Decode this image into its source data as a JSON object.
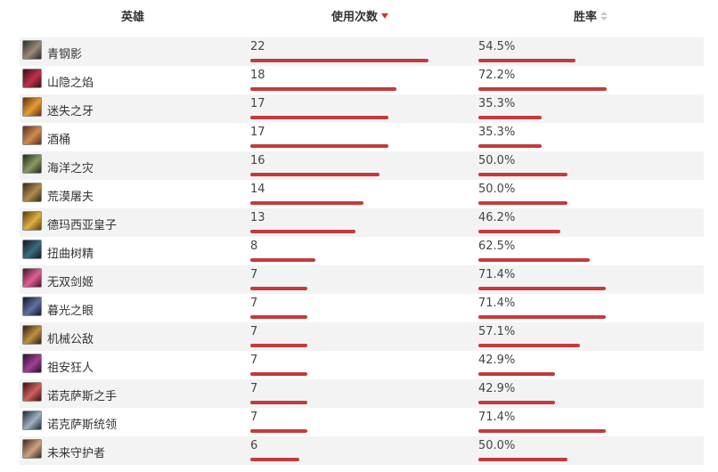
{
  "header": {
    "hero": "英雄",
    "uses": "使用次数",
    "winrate": "胜率"
  },
  "colors": {
    "bar": "#c53a3a",
    "sort_active": "#cf3535",
    "row_alt": "#f3f3f3"
  },
  "sort": {
    "column": "uses",
    "direction": "desc"
  },
  "rows": [
    {
      "hero": "青钢影",
      "uses": "22",
      "winrate": "54.5%",
      "uses_n": 22,
      "win_n": 54.5,
      "avatar_colors": [
        "#2b2b2b",
        "#9a8a7a"
      ]
    },
    {
      "hero": "山隐之焰",
      "uses": "18",
      "winrate": "72.2%",
      "uses_n": 18,
      "win_n": 72.2,
      "avatar_colors": [
        "#3a0f18",
        "#c0304a"
      ]
    },
    {
      "hero": "迷失之牙",
      "uses": "17",
      "winrate": "35.3%",
      "uses_n": 17,
      "win_n": 35.3,
      "avatar_colors": [
        "#6b2a10",
        "#e0a030"
      ]
    },
    {
      "hero": "酒桶",
      "uses": "17",
      "winrate": "35.3%",
      "uses_n": 17,
      "win_n": 35.3,
      "avatar_colors": [
        "#5a3020",
        "#d08a50"
      ]
    },
    {
      "hero": "海洋之灾",
      "uses": "16",
      "winrate": "50.0%",
      "uses_n": 16,
      "win_n": 50.0,
      "avatar_colors": [
        "#1f2a20",
        "#8a9a60"
      ]
    },
    {
      "hero": "荒漠屠夫",
      "uses": "14",
      "winrate": "50.0%",
      "uses_n": 14,
      "win_n": 50.0,
      "avatar_colors": [
        "#3a2a18",
        "#b08a50"
      ]
    },
    {
      "hero": "德玛西亚皇子",
      "uses": "13",
      "winrate": "46.2%",
      "uses_n": 13,
      "win_n": 46.2,
      "avatar_colors": [
        "#5a3a10",
        "#e0b040"
      ]
    },
    {
      "hero": "扭曲树精",
      "uses": "8",
      "winrate": "62.5%",
      "uses_n": 8,
      "win_n": 62.5,
      "avatar_colors": [
        "#0f1a25",
        "#3a6a80"
      ]
    },
    {
      "hero": "无双剑姬",
      "uses": "7",
      "winrate": "71.4%",
      "uses_n": 7,
      "win_n": 71.4,
      "avatar_colors": [
        "#4a1030",
        "#e06090"
      ]
    },
    {
      "hero": "暮光之眼",
      "uses": "7",
      "winrate": "71.4%",
      "uses_n": 7,
      "win_n": 71.4,
      "avatar_colors": [
        "#10182a",
        "#6070a0"
      ]
    },
    {
      "hero": "机械公敌",
      "uses": "7",
      "winrate": "57.1%",
      "uses_n": 7,
      "win_n": 57.1,
      "avatar_colors": [
        "#2a2010",
        "#c09040"
      ]
    },
    {
      "hero": "祖安狂人",
      "uses": "7",
      "winrate": "42.9%",
      "uses_n": 7,
      "win_n": 42.9,
      "avatar_colors": [
        "#2a1030",
        "#a04090"
      ]
    },
    {
      "hero": "诺克萨斯之手",
      "uses": "7",
      "winrate": "42.9%",
      "uses_n": 7,
      "win_n": 42.9,
      "avatar_colors": [
        "#3a1010",
        "#d06060"
      ]
    },
    {
      "hero": "诺克萨斯统领",
      "uses": "7",
      "winrate": "71.4%",
      "uses_n": 7,
      "win_n": 71.4,
      "avatar_colors": [
        "#1a2a3a",
        "#a0b0c0"
      ]
    },
    {
      "hero": "未来守护者",
      "uses": "6",
      "winrate": "50.0%",
      "uses_n": 6,
      "win_n": 50.0,
      "avatar_colors": [
        "#3a2a20",
        "#d0a080"
      ]
    }
  ]
}
